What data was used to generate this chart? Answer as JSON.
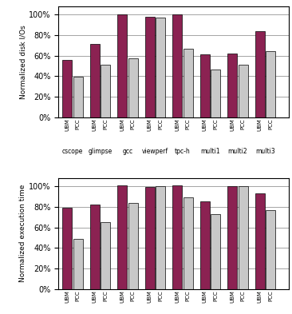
{
  "top_chart": {
    "ylabel": "Normalized disk I/Os",
    "groups": [
      "cscope",
      "glimpse",
      "gcc",
      "viewperf",
      "tpc-h",
      "multi1",
      "multi2",
      "multi3"
    ],
    "ubm": [
      56,
      71,
      100,
      98,
      100,
      61,
      62,
      84
    ],
    "pcc": [
      39,
      51,
      57,
      97,
      67,
      46,
      51,
      64
    ]
  },
  "bottom_chart": {
    "ylabel": "Normalized execution time",
    "groups": [
      "cscope",
      "glimpse",
      "gcc",
      "viewperf",
      "tpc-h",
      "multi1",
      "multi2",
      "multi3"
    ],
    "ubm": [
      79,
      82,
      101,
      99,
      101,
      85,
      100,
      93
    ],
    "pcc": [
      49,
      65,
      84,
      100,
      89,
      73,
      100,
      77
    ]
  },
  "ubm_color": "#8B2252",
  "pcc_color": "#C8C8C8",
  "bar_width": 0.38,
  "yticks": [
    0,
    20,
    40,
    60,
    80,
    100
  ],
  "ytick_labels": [
    "0%",
    "20%",
    "40%",
    "60%",
    "80%",
    "100%"
  ]
}
